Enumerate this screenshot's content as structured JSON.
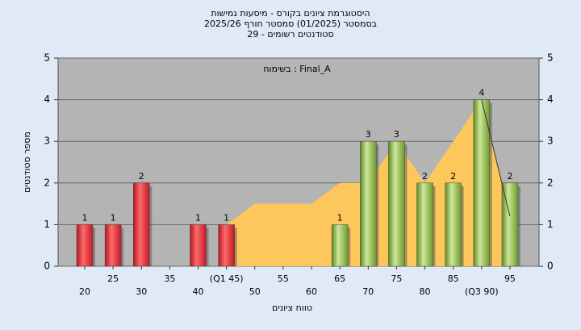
{
  "chart_data": {
    "type": "bar",
    "title": [
      "היסטוגרמת ציונים בקורס - מיסעות גמישות",
      "בסמסטר (01/2025) סמסטר חורף 2025/26",
      "סטודנטים רשומים - 29"
    ],
    "annotation": "בשימוח : Final_A",
    "x_label": "טווח ציונים",
    "y_label": "מספר סטודנטים",
    "categories": [
      "20",
      "25",
      "30",
      "35",
      "40",
      "(Q1 45)",
      "50",
      "55",
      "60",
      "65",
      "70",
      "75",
      "80",
      "85",
      "(Q3 90)",
      "95"
    ],
    "series": [
      {
        "color": "#e0303a",
        "values": [
          1,
          1,
          2,
          null,
          1,
          1,
          null,
          null,
          null,
          null,
          null,
          null,
          null,
          null,
          null,
          null
        ]
      },
      {
        "color": "#8cbf3f",
        "values": [
          null,
          null,
          null,
          null,
          null,
          null,
          null,
          null,
          null,
          1,
          3,
          3,
          2,
          2,
          4,
          2
        ]
      }
    ],
    "trend": {
      "color": "#fdc75c",
      "values": [
        null,
        null,
        null,
        null,
        null,
        1,
        1.5,
        1.5,
        1.5,
        2,
        2,
        3,
        2,
        3,
        4,
        1.2
      ]
    },
    "ylim": [
      0,
      5
    ],
    "yticks": [
      0,
      1,
      2,
      3,
      4,
      5
    ],
    "y2lim": [
      0,
      5
    ],
    "y2ticks": [
      0,
      1,
      2,
      3,
      4,
      5
    ],
    "grid": true
  }
}
